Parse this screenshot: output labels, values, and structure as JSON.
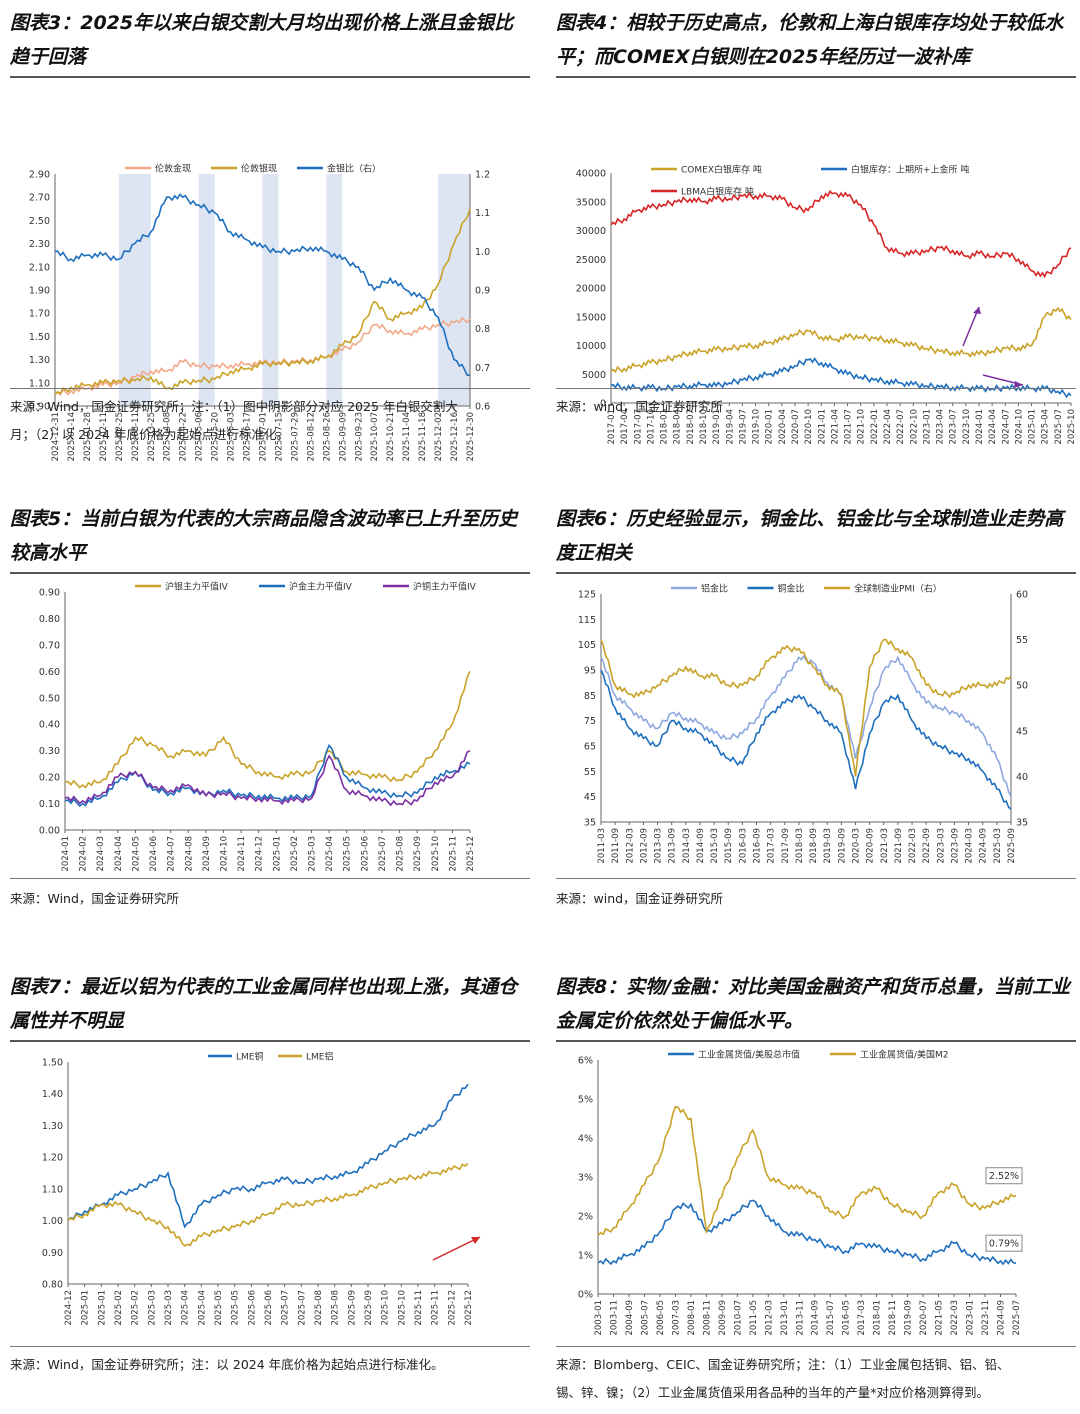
{
  "panels": [
    {
      "title": "图表3：2025年以来白银交割大月均出现价格上涨且金银比趋于回落",
      "source_lines": [
        "来源：Wind，国金证券研究所；注：（1）图中阴影部分对应 2025 年白银交割大",
        "月；（2）以 2024 年底价格为起始点进行标准化。"
      ],
      "chart_data": {
        "type": "line",
        "legend": [
          "伦敦金现",
          "伦敦银现",
          "金银比（右）"
        ],
        "colors": [
          "#f2a98a",
          "#c9a227",
          "#1f6fbf"
        ],
        "y_ticks": [
          "2.90",
          "2.70",
          "2.50",
          "2.30",
          "2.10",
          "1.90",
          "1.70",
          "1.50",
          "1.30",
          "1.10",
          "0.90"
        ],
        "y2_ticks": [
          "1.2",
          "1.1",
          "1.0",
          "0.9",
          "0.8",
          "0.7",
          "0.6"
        ],
        "ylim": [
          0.9,
          2.9
        ],
        "y2lim": [
          0.6,
          1.2
        ],
        "x_ticks": [
          "2024-12-31",
          "2025-01-14",
          "2025-01-28",
          "2025-02-11",
          "2025-02-25",
          "2025-03-11",
          "2025-03-25",
          "2025-04-08",
          "2025-04-22",
          "2025-05-06",
          "2025-05-20",
          "2025-06-03",
          "2025-06-17",
          "2025-07-01",
          "2025-07-15",
          "2025-07-29",
          "2025-08-12",
          "2025-08-26",
          "2025-09-09",
          "2025-09-23",
          "2025-10-07",
          "2025-10-21",
          "2025-11-04",
          "2025-11-18",
          "2025-12-02",
          "2025-12-16",
          "2025-12-30"
        ],
        "shaded_months": [
          "2025-03",
          "2025-05",
          "2025-07",
          "2025-09",
          "2025-12"
        ],
        "series": [
          {
            "name": "伦敦金现",
            "axis": "left",
            "values": [
              1.0,
              1.03,
              1.05,
              1.08,
              1.1,
              1.15,
              1.2,
              1.2,
              1.28,
              1.25,
              1.24,
              1.25,
              1.26,
              1.27,
              1.28,
              1.28,
              1.3,
              1.32,
              1.38,
              1.45,
              1.6,
              1.55,
              1.52,
              1.56,
              1.6,
              1.62,
              1.65
            ]
          },
          {
            "name": "伦敦银现",
            "axis": "left",
            "values": [
              1.0,
              1.06,
              1.08,
              1.1,
              1.12,
              1.12,
              1.15,
              1.05,
              1.1,
              1.12,
              1.13,
              1.2,
              1.22,
              1.26,
              1.27,
              1.27,
              1.29,
              1.32,
              1.42,
              1.52,
              1.8,
              1.65,
              1.7,
              1.75,
              1.95,
              2.3,
              2.6
            ]
          },
          {
            "name": "金银比（右）",
            "axis": "right",
            "values": [
              1.0,
              0.98,
              0.99,
              0.99,
              0.98,
              1.02,
              1.05,
              1.14,
              1.14,
              1.12,
              1.1,
              1.05,
              1.03,
              1.01,
              1.0,
              1.0,
              1.01,
              1.0,
              0.98,
              0.96,
              0.9,
              0.93,
              0.9,
              0.88,
              0.83,
              0.72,
              0.68
            ]
          }
        ]
      }
    },
    {
      "title": "图表4：相较于历史高点，伦敦和上海白银库存均处于较低水平；而COMEX白银则在2025年经历过一波补库",
      "source_lines": [
        "来源：wind，国金证券研究所"
      ],
      "chart_data": {
        "type": "line",
        "legend": [
          "COMEX白银库存 吨",
          "白银库存：上期所+上金所 吨",
          "LBMA白银库存 吨"
        ],
        "colors": [
          "#c9a227",
          "#1f6fbf",
          "#d62728"
        ],
        "y_ticks": [
          "40000",
          "35000",
          "30000",
          "25000",
          "20000",
          "15000",
          "10000",
          "5000",
          "0"
        ],
        "ylim": [
          0,
          40000
        ],
        "x_ticks": [
          "2017-01",
          "2017-04",
          "2017-07",
          "2017-10",
          "2018-01",
          "2018-04",
          "2018-07",
          "2018-10",
          "2019-01",
          "2019-04",
          "2019-07",
          "2019-10",
          "2020-01",
          "2020-04",
          "2020-07",
          "2020-10",
          "2021-01",
          "2021-04",
          "2021-07",
          "2021-10",
          "2022-01",
          "2022-04",
          "2022-07",
          "2022-10",
          "2023-01",
          "2023-04",
          "2023-07",
          "2023-10",
          "2024-01",
          "2024-04",
          "2024-07",
          "2024-10",
          "2025-01",
          "2025-04",
          "2025-07",
          "2025-10"
        ],
        "series": [
          {
            "name": "COMEX白银库存 吨",
            "values": [
              5500,
              6000,
              6500,
              7000,
              7500,
              8000,
              8800,
              9000,
              9300,
              9500,
              9800,
              10000,
              10500,
              11000,
              12000,
              12500,
              11500,
              11000,
              11500,
              11500,
              11200,
              11000,
              10500,
              10000,
              9500,
              9000,
              8800,
              8600,
              8500,
              9000,
              9500,
              9600,
              10000,
              15000,
              16500,
              14500
            ]
          },
          {
            "name": "白银库存：上期所+上金所 吨",
            "values": [
              3000,
              2800,
              2600,
              2700,
              2500,
              2800,
              3000,
              3200,
              3000,
              3500,
              4000,
              4500,
              5000,
              5500,
              6500,
              7500,
              7000,
              6000,
              5000,
              4500,
              4000,
              3800,
              3500,
              3200,
              3000,
              2800,
              2700,
              2600,
              2500,
              2500,
              2600,
              2700,
              2500,
              2500,
              2000,
              1300
            ]
          },
          {
            "name": "LBMA白银库存 吨",
            "values": [
              31000,
              32000,
              33500,
              34000,
              34500,
              35000,
              35500,
              35000,
              35500,
              35500,
              36000,
              36000,
              36000,
              35500,
              34000,
              33500,
              36000,
              36500,
              36000,
              34500,
              31000,
              27000,
              26000,
              26000,
              26500,
              27000,
              26500,
              25500,
              26000,
              25500,
              26000,
              25000,
              23000,
              22000,
              24000,
              27000
            ]
          }
        ]
      }
    },
    {
      "title": "图表5：当前白银为代表的大宗商品隐含波动率已上升至历史较高水平",
      "source_lines": [
        "来源：Wind，国金证券研究所"
      ],
      "chart_data": {
        "type": "line",
        "legend": [
          "沪银主力平值IV",
          "沪金主力平值IV",
          "沪铜主力平值IV"
        ],
        "colors": [
          "#c9a227",
          "#1f6fbf",
          "#7b2fa3"
        ],
        "y_ticks": [
          "0.90",
          "0.80",
          "0.70",
          "0.60",
          "0.50",
          "0.40",
          "0.30",
          "0.20",
          "0.10",
          "0.00"
        ],
        "ylim": [
          0,
          0.9
        ],
        "x_ticks": [
          "2024-01",
          "2024-02",
          "2024-03",
          "2024-04",
          "2024-05",
          "2024-06",
          "2024-07",
          "2024-08",
          "2024-09",
          "2024-10",
          "2024-11",
          "2024-12",
          "2025-01",
          "2025-02",
          "2025-03",
          "2025-04",
          "2025-05",
          "2025-06",
          "2025-07",
          "2025-08",
          "2025-09",
          "2025-10",
          "2025-11",
          "2025-12"
        ],
        "series": [
          {
            "name": "沪银主力平值IV",
            "values": [
              0.18,
              0.17,
              0.18,
              0.25,
              0.35,
              0.32,
              0.28,
              0.3,
              0.28,
              0.35,
              0.25,
              0.22,
              0.2,
              0.21,
              0.22,
              0.3,
              0.22,
              0.21,
              0.2,
              0.19,
              0.22,
              0.3,
              0.4,
              0.6
            ]
          },
          {
            "name": "沪金主力平值IV",
            "values": [
              0.11,
              0.1,
              0.12,
              0.18,
              0.22,
              0.15,
              0.14,
              0.16,
              0.13,
              0.15,
              0.13,
              0.13,
              0.12,
              0.12,
              0.13,
              0.32,
              0.2,
              0.16,
              0.14,
              0.13,
              0.14,
              0.2,
              0.22,
              0.25
            ]
          },
          {
            "name": "沪铜主力平值IV",
            "values": [
              0.12,
              0.11,
              0.13,
              0.2,
              0.22,
              0.16,
              0.15,
              0.17,
              0.13,
              0.14,
              0.12,
              0.12,
              0.11,
              0.11,
              0.12,
              0.28,
              0.15,
              0.13,
              0.11,
              0.1,
              0.11,
              0.18,
              0.2,
              0.3
            ]
          }
        ]
      }
    },
    {
      "title": "图表6：历史经验显示，铜金比、铝金比与全球制造业走势高度正相关",
      "source_lines": [
        "来源：wind，国金证券研究所"
      ],
      "chart_data": {
        "type": "line",
        "legend": [
          "铝金比",
          "铜金比",
          "全球制造业PMI（右）"
        ],
        "colors": [
          "#8fa8e0",
          "#1f6fbf",
          "#c9a227"
        ],
        "y_ticks": [
          "125",
          "115",
          "105",
          "95",
          "85",
          "75",
          "65",
          "55",
          "45",
          "35"
        ],
        "y2_ticks": [
          "60",
          "55",
          "50",
          "45",
          "40",
          "35"
        ],
        "ylim": [
          35,
          125
        ],
        "y2lim": [
          35,
          60
        ],
        "x_ticks": [
          "2011-03",
          "2011-09",
          "2012-03",
          "2012-09",
          "2013-03",
          "2013-09",
          "2014-03",
          "2014-09",
          "2015-03",
          "2015-09",
          "2016-03",
          "2016-09",
          "2017-03",
          "2017-09",
          "2018-03",
          "2018-09",
          "2019-03",
          "2019-09",
          "2020-03",
          "2020-09",
          "2021-03",
          "2021-09",
          "2022-03",
          "2022-09",
          "2023-03",
          "2023-09",
          "2024-03",
          "2024-09",
          "2025-03",
          "2025-09"
        ],
        "series": [
          {
            "name": "铝金比",
            "axis": "left",
            "values": [
              100,
              85,
              80,
              75,
              72,
              78,
              76,
              74,
              70,
              68,
              70,
              76,
              85,
              92,
              100,
              98,
              90,
              85,
              60,
              80,
              95,
              100,
              90,
              82,
              80,
              78,
              75,
              70,
              60,
              45
            ]
          },
          {
            "name": "铜金比",
            "axis": "left",
            "values": [
              95,
              80,
              72,
              68,
              65,
              75,
              72,
              70,
              65,
              60,
              58,
              70,
              78,
              82,
              85,
              80,
              75,
              70,
              48,
              70,
              82,
              85,
              75,
              68,
              65,
              62,
              60,
              55,
              48,
              40
            ]
          },
          {
            "name": "全球制造业PMI（右）",
            "axis": "right",
            "values": [
              55,
              50,
              49,
              49,
              50,
              51,
              52,
              51,
              51,
              50,
              50,
              51,
              53,
              54,
              54,
              52,
              50,
              49,
              40,
              52,
              55,
              54,
              53,
              50,
              49,
              49,
              50,
              50,
              50,
              51
            ]
          }
        ]
      }
    },
    {
      "title": "图表7：最近以铝为代表的工业金属同样也出现上涨，其通仓属性并不明显",
      "source_lines": [
        "来源：Wind，国金证券研究所；注：以 2024 年底价格为起始点进行标准化。"
      ],
      "chart_data": {
        "type": "line",
        "legend": [
          "LME铜",
          "LME铝"
        ],
        "colors": [
          "#1f6fbf",
          "#c9a227"
        ],
        "y_ticks": [
          "1.50",
          "1.40",
          "1.30",
          "1.20",
          "1.10",
          "1.00",
          "0.90",
          "0.80"
        ],
        "ylim": [
          0.8,
          1.5
        ],
        "x_ticks": [
          "2024-12",
          "2025-01",
          "2025-01",
          "2025-02",
          "2025-02",
          "2025-03",
          "2025-03",
          "2025-04",
          "2025-04",
          "2025-05",
          "2025-05",
          "2025-06",
          "2025-06",
          "2025-07",
          "2025-07",
          "2025-08",
          "2025-08",
          "2025-09",
          "2025-09",
          "2025-10",
          "2025-10",
          "2025-11",
          "2025-11",
          "2025-12",
          "2025-12"
        ],
        "series": [
          {
            "name": "LME铜",
            "values": [
              1.0,
              1.03,
              1.05,
              1.08,
              1.1,
              1.12,
              1.15,
              0.98,
              1.05,
              1.08,
              1.1,
              1.1,
              1.12,
              1.13,
              1.12,
              1.13,
              1.14,
              1.15,
              1.18,
              1.22,
              1.25,
              1.28,
              1.3,
              1.38,
              1.43
            ]
          },
          {
            "name": "LME铝",
            "values": [
              1.0,
              1.02,
              1.05,
              1.05,
              1.03,
              1.0,
              0.98,
              0.92,
              0.95,
              0.97,
              0.98,
              1.0,
              1.02,
              1.05,
              1.05,
              1.06,
              1.07,
              1.08,
              1.1,
              1.12,
              1.13,
              1.14,
              1.15,
              1.16,
              1.18
            ]
          }
        ]
      }
    },
    {
      "title": "图表8：实物/金融：对比美国金融资产和货币总量，当前工业金属定价依然处于偏低水平。",
      "source_lines": [
        "来源：Blomberg、CEIC、国金证券研究所；注：（1）工业金属包括铜、铝、铅、",
        "锡、锌、镍；（2）工业金属货值采用各品种的当年的产量*对应价格测算得到。"
      ],
      "chart_data": {
        "type": "line",
        "legend": [
          "工业金属货值/美股总市值",
          "工业金属货值/美国M2"
        ],
        "colors": [
          "#1f6fbf",
          "#c9a227"
        ],
        "y_ticks": [
          "6%",
          "5%",
          "4%",
          "3%",
          "2%",
          "1%",
          "0%"
        ],
        "ylim": [
          0,
          6
        ],
        "x_ticks": [
          "2003-01",
          "2003-11",
          "2004-09",
          "2005-07",
          "2006-05",
          "2007-03",
          "2008-01",
          "2008-11",
          "2009-09",
          "2010-07",
          "2011-05",
          "2012-03",
          "2013-01",
          "2013-11",
          "2014-09",
          "2015-07",
          "2016-05",
          "2017-03",
          "2018-01",
          "2018-11",
          "2019-09",
          "2020-07",
          "2021-05",
          "2022-03",
          "2023-01",
          "2023-11",
          "2024-09",
          "2025-07"
        ],
        "annotations": [
          "2.52%",
          "0.79%"
        ],
        "series": [
          {
            "name": "工业金属货值/美股总市值",
            "values": [
              0.8,
              0.85,
              1.0,
              1.2,
              1.6,
              2.2,
              2.3,
              1.6,
              1.8,
              2.1,
              2.4,
              2.0,
              1.6,
              1.5,
              1.4,
              1.2,
              1.1,
              1.3,
              1.2,
              1.1,
              1.0,
              0.9,
              1.1,
              1.3,
              1.0,
              0.9,
              0.85,
              0.79
            ]
          },
          {
            "name": "工业金属货值/美国M2",
            "values": [
              1.5,
              1.7,
              2.2,
              2.8,
              3.5,
              4.8,
              4.5,
              1.6,
              2.5,
              3.5,
              4.2,
              3.0,
              2.8,
              2.7,
              2.6,
              2.1,
              2.0,
              2.6,
              2.7,
              2.3,
              2.1,
              2.0,
              2.6,
              2.8,
              2.3,
              2.2,
              2.4,
              2.52
            ]
          }
        ]
      }
    }
  ]
}
